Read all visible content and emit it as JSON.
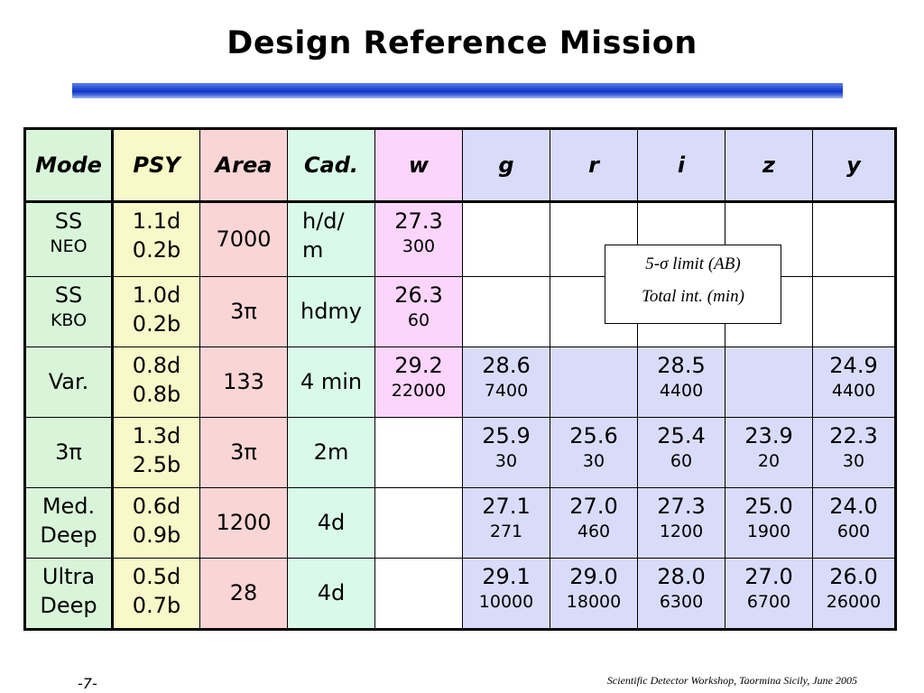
{
  "title": "Design Reference Mission",
  "table": {
    "headers": [
      "Mode",
      "PSY",
      "Area",
      "Cad.",
      "w",
      "g",
      "r",
      "i",
      "z",
      "y"
    ],
    "rows": [
      {
        "mode": [
          "SS",
          "NEO"
        ],
        "psy": [
          "1.1d",
          "0.2b"
        ],
        "area": "7000",
        "cad": [
          "h/d/",
          "m"
        ],
        "bands": [
          {
            "mag": "27.3",
            "time": "300"
          },
          {
            "mag": "",
            "time": ""
          },
          {
            "mag": "",
            "time": ""
          },
          {
            "mag": "",
            "time": ""
          },
          {
            "mag": "",
            "time": ""
          },
          {
            "mag": "",
            "time": ""
          }
        ]
      },
      {
        "mode": [
          "SS",
          "KBO"
        ],
        "psy": [
          "1.0d",
          "0.2b"
        ],
        "area": "3π",
        "cad": [
          "hdmy"
        ],
        "bands": [
          {
            "mag": "26.3",
            "time": "60"
          },
          {
            "mag": "",
            "time": ""
          },
          {
            "mag": "",
            "time": ""
          },
          {
            "mag": "",
            "time": ""
          },
          {
            "mag": "",
            "time": ""
          },
          {
            "mag": "",
            "time": ""
          }
        ]
      },
      {
        "mode": [
          "Var."
        ],
        "psy": [
          "0.8d",
          "0.8b"
        ],
        "area": "133",
        "cad": [
          "4 min"
        ],
        "bands": [
          {
            "mag": "29.2",
            "time": "22000"
          },
          {
            "mag": "28.6",
            "time": "7400"
          },
          {
            "mag": "",
            "time": ""
          },
          {
            "mag": "28.5",
            "time": "4400"
          },
          {
            "mag": "",
            "time": ""
          },
          {
            "mag": "24.9",
            "time": "4400"
          }
        ]
      },
      {
        "mode": [
          "3π"
        ],
        "psy": [
          "1.3d",
          "2.5b"
        ],
        "area": "3π",
        "cad": [
          "2m"
        ],
        "bands": [
          {
            "mag": "",
            "time": ""
          },
          {
            "mag": "25.9",
            "time": "30"
          },
          {
            "mag": "25.6",
            "time": "30"
          },
          {
            "mag": "25.4",
            "time": "60"
          },
          {
            "mag": "23.9",
            "time": "20"
          },
          {
            "mag": "22.3",
            "time": "30"
          }
        ]
      },
      {
        "mode": [
          "Med.",
          "Deep"
        ],
        "psy": [
          "0.6d",
          "0.9b"
        ],
        "area": "1200",
        "cad": [
          "4d"
        ],
        "bands": [
          {
            "mag": "",
            "time": ""
          },
          {
            "mag": "27.1",
            "time": "271"
          },
          {
            "mag": "27.0",
            "time": "460"
          },
          {
            "mag": "27.3",
            "time": "1200"
          },
          {
            "mag": "25.0",
            "time": "1900"
          },
          {
            "mag": "24.0",
            "time": "600"
          }
        ]
      },
      {
        "mode": [
          "Ultra",
          "Deep"
        ],
        "psy": [
          "0.5d",
          "0.7b"
        ],
        "area": "28",
        "cad": [
          "4d"
        ],
        "bands": [
          {
            "mag": "",
            "time": ""
          },
          {
            "mag": "29.1",
            "time": "10000"
          },
          {
            "mag": "29.0",
            "time": "18000"
          },
          {
            "mag": "28.0",
            "time": "6300"
          },
          {
            "mag": "27.0",
            "time": "6700"
          },
          {
            "mag": "26.0",
            "time": "26000"
          }
        ]
      }
    ]
  },
  "legend": {
    "line1": "5-σ limit (AB)",
    "line2": "Total int. (min)"
  },
  "footer": {
    "page": "-7-",
    "credit": "Scientific Detector Workshop, Taormina Sicily, June 2005"
  },
  "colors": {
    "mode": "#d9f5d9",
    "psy": "#f8f8c8",
    "area": "#fad5d5",
    "cad": "#d9f9ea",
    "w": "#fbd5fb",
    "bands": "#d9dcf9",
    "title_bar": "#1a3fd0"
  }
}
